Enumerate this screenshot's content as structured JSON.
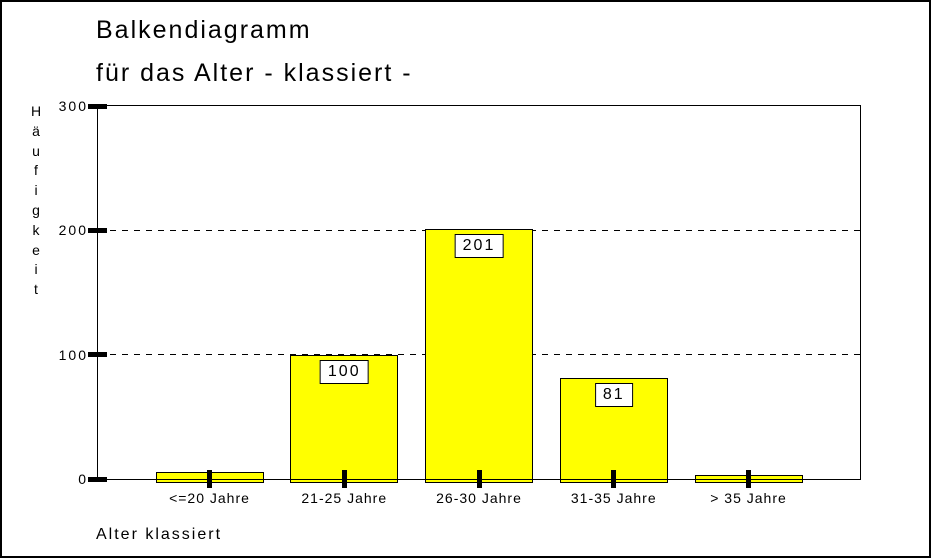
{
  "chart_data": {
    "type": "bar",
    "title_line1": "Balkendiagramm",
    "title_line2": "für das Alter - klassiert -",
    "ylabel": "Häufigkeit",
    "xlabel": "Alter klassiert",
    "categories": [
      "<=20 Jahre",
      "21-25 Jahre",
      "26-30 Jahre",
      "31-35 Jahre",
      "> 35 Jahre"
    ],
    "values": [
      6,
      100,
      201,
      81,
      3
    ],
    "value_labels": [
      "",
      "100",
      "201",
      "81",
      ""
    ],
    "y_ticks": [
      0,
      100,
      200,
      300
    ],
    "ylim": [
      0,
      300
    ],
    "grid_lines": [
      100,
      200
    ],
    "grid_style": "dashed",
    "legend": "none",
    "bar_color": "#FFFF00",
    "bar_border_color": "#000000",
    "frame_color": "#000000",
    "background_color": "#FFFFFF"
  }
}
